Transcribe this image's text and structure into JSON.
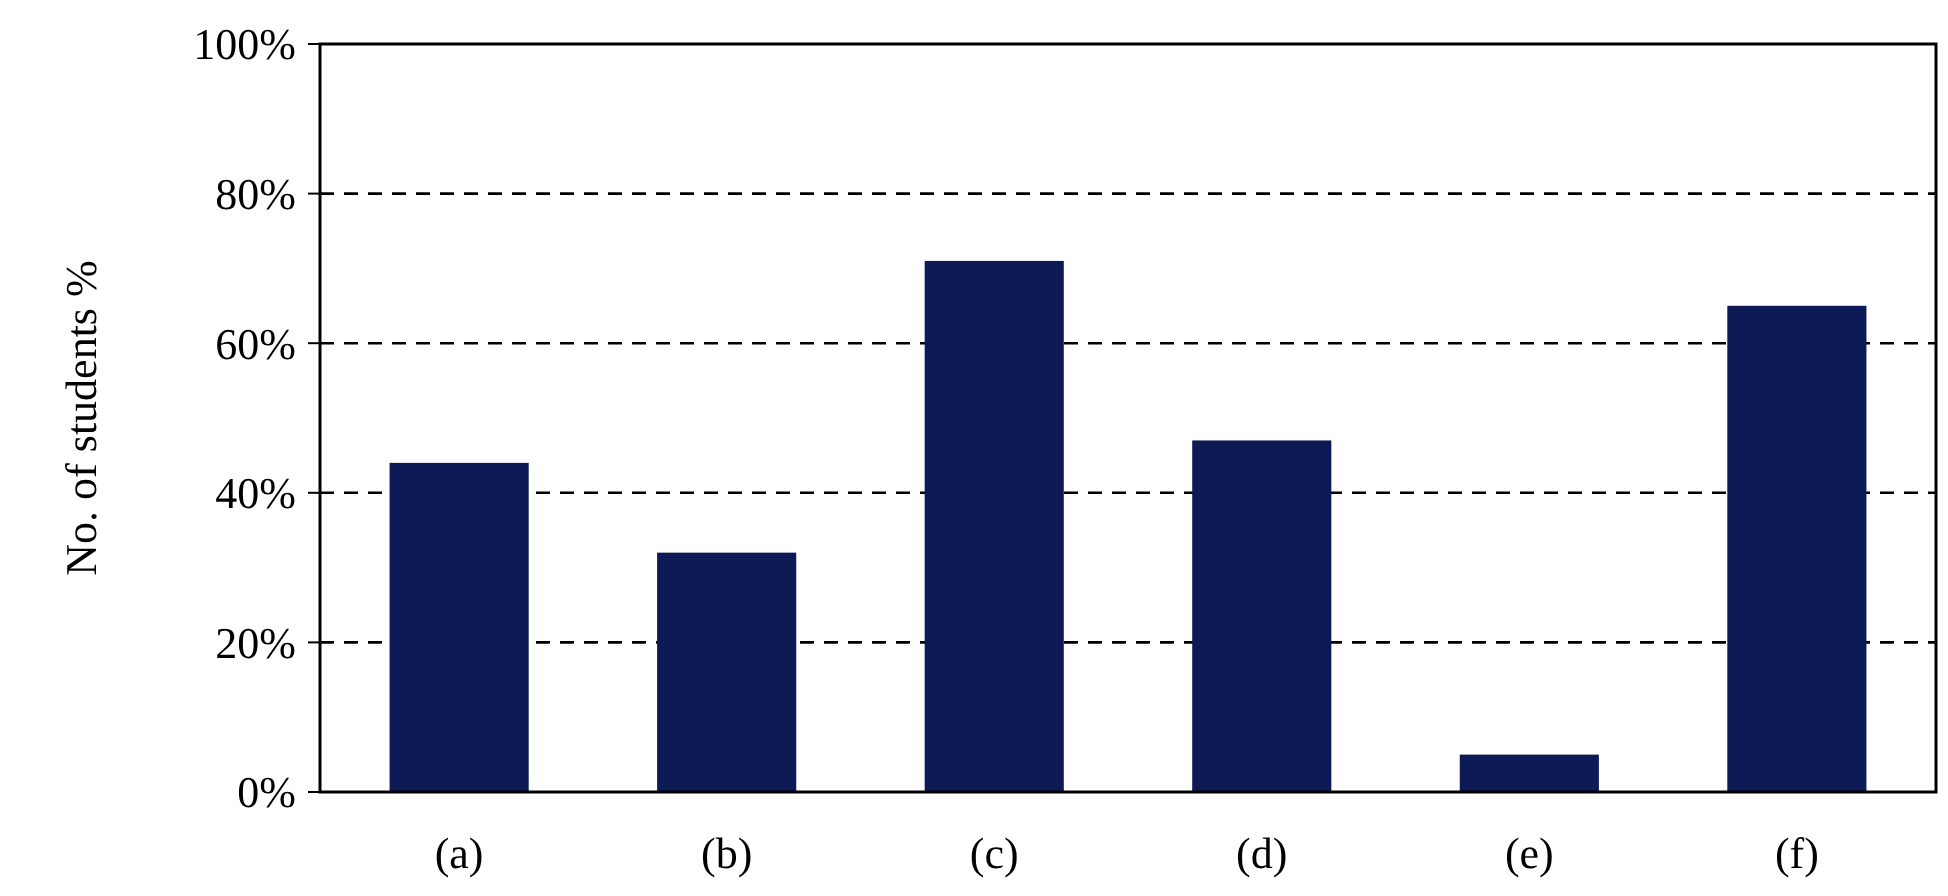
{
  "chart_data": {
    "type": "bar",
    "ylabel": "No. of students  %",
    "categories": [
      "(a)",
      "(b)",
      "(c)",
      "(d)",
      "(e)",
      "(f)"
    ],
    "values": [
      44,
      32,
      71,
      47,
      5,
      65
    ],
    "color": "#0d1a55",
    "ylim": [
      0,
      100
    ],
    "yticks": [
      {
        "value": 0,
        "label": "0%"
      },
      {
        "value": 20,
        "label": "20%"
      },
      {
        "value": 40,
        "label": "40%"
      },
      {
        "value": 60,
        "label": "60%"
      },
      {
        "value": 80,
        "label": "80%"
      },
      {
        "value": 100,
        "label": "100%"
      }
    ],
    "grid": "y"
  }
}
